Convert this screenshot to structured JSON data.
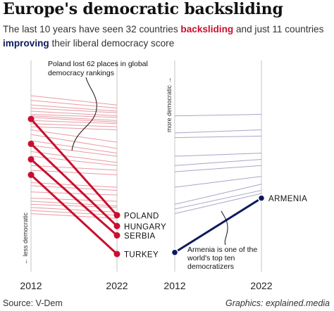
{
  "title": "Europe's democratic backsliding",
  "subtitle": {
    "part1": "The last 10 years have seen 32 countries ",
    "keyword1": "backsliding",
    "part2": " and just 11 countries ",
    "keyword2": "improving",
    "part3": " their liberal democracy score"
  },
  "colors": {
    "backsliding": "#c8102e",
    "improving": "#0c1a5c",
    "faded_red": "#e89aa3",
    "faded_blue": "#a6a6c8",
    "axis": "#cfcfcf"
  },
  "chart_data": [
    {
      "type": "line",
      "panel": "backsliding",
      "x": [
        "2012",
        "2022"
      ],
      "y_axis_label": "← less democratic",
      "annotation": "Poland lost 62 places in global democracy rankings",
      "series": [
        {
          "name": "POLAND",
          "values": [
            3,
            65
          ]
        },
        {
          "name": "HUNGARY",
          "values": [
            19,
            72
          ]
        },
        {
          "name": "SERBIA",
          "values": [
            29,
            78
          ]
        },
        {
          "name": "TURKEY",
          "values": [
            39,
            90
          ]
        },
        {
          "values": [
            -12,
            -6
          ]
        },
        {
          "values": [
            -9,
            -4
          ]
        },
        {
          "values": [
            -6,
            -2
          ]
        },
        {
          "values": [
            -4,
            -1
          ]
        },
        {
          "values": [
            -2,
            1
          ]
        },
        {
          "values": [
            0,
            2
          ]
        },
        {
          "values": [
            1,
            4
          ]
        },
        {
          "values": [
            2,
            5
          ]
        },
        {
          "values": [
            4,
            6
          ]
        },
        {
          "values": [
            6,
            8
          ]
        },
        {
          "values": [
            8,
            10
          ]
        },
        {
          "values": [
            10,
            18
          ]
        },
        {
          "values": [
            13,
            22
          ]
        },
        {
          "values": [
            17,
            25
          ]
        },
        {
          "values": [
            20,
            27
          ]
        },
        {
          "values": [
            24,
            31
          ]
        },
        {
          "values": [
            27,
            33
          ]
        },
        {
          "values": [
            33,
            36
          ]
        },
        {
          "values": [
            36,
            39
          ]
        },
        {
          "values": [
            44,
            47
          ]
        },
        {
          "values": [
            46,
            49
          ]
        },
        {
          "values": [
            50,
            52
          ]
        },
        {
          "values": [
            54,
            56
          ]
        },
        {
          "values": [
            56,
            59
          ]
        },
        {
          "values": [
            58,
            60
          ]
        },
        {
          "values": [
            60,
            63
          ]
        },
        {
          "values": [
            62,
            65
          ]
        },
        {
          "values": [
            64,
            67
          ]
        }
      ]
    },
    {
      "type": "line",
      "panel": "improving",
      "x": [
        "2012",
        "2022"
      ],
      "y_axis_label": "more democratic →",
      "annotation": "Armenia is one of the world's top ten democratizers",
      "series": [
        {
          "name": "ARMENIA",
          "values": [
            89,
            54
          ]
        },
        {
          "values": [
            1,
            0
          ]
        },
        {
          "values": [
            12,
            10
          ]
        },
        {
          "values": [
            15,
            14
          ]
        },
        {
          "values": [
            27,
            25
          ]
        },
        {
          "values": [
            33,
            29
          ]
        },
        {
          "values": [
            37,
            33
          ]
        },
        {
          "values": [
            47,
            40
          ]
        },
        {
          "values": [
            58,
            45
          ]
        },
        {
          "values": [
            61,
            49
          ]
        },
        {
          "values": [
            64,
            51
          ]
        }
      ]
    }
  ],
  "footer": {
    "source": "Source: V-Dem",
    "credit": "Graphics: explained.media"
  }
}
